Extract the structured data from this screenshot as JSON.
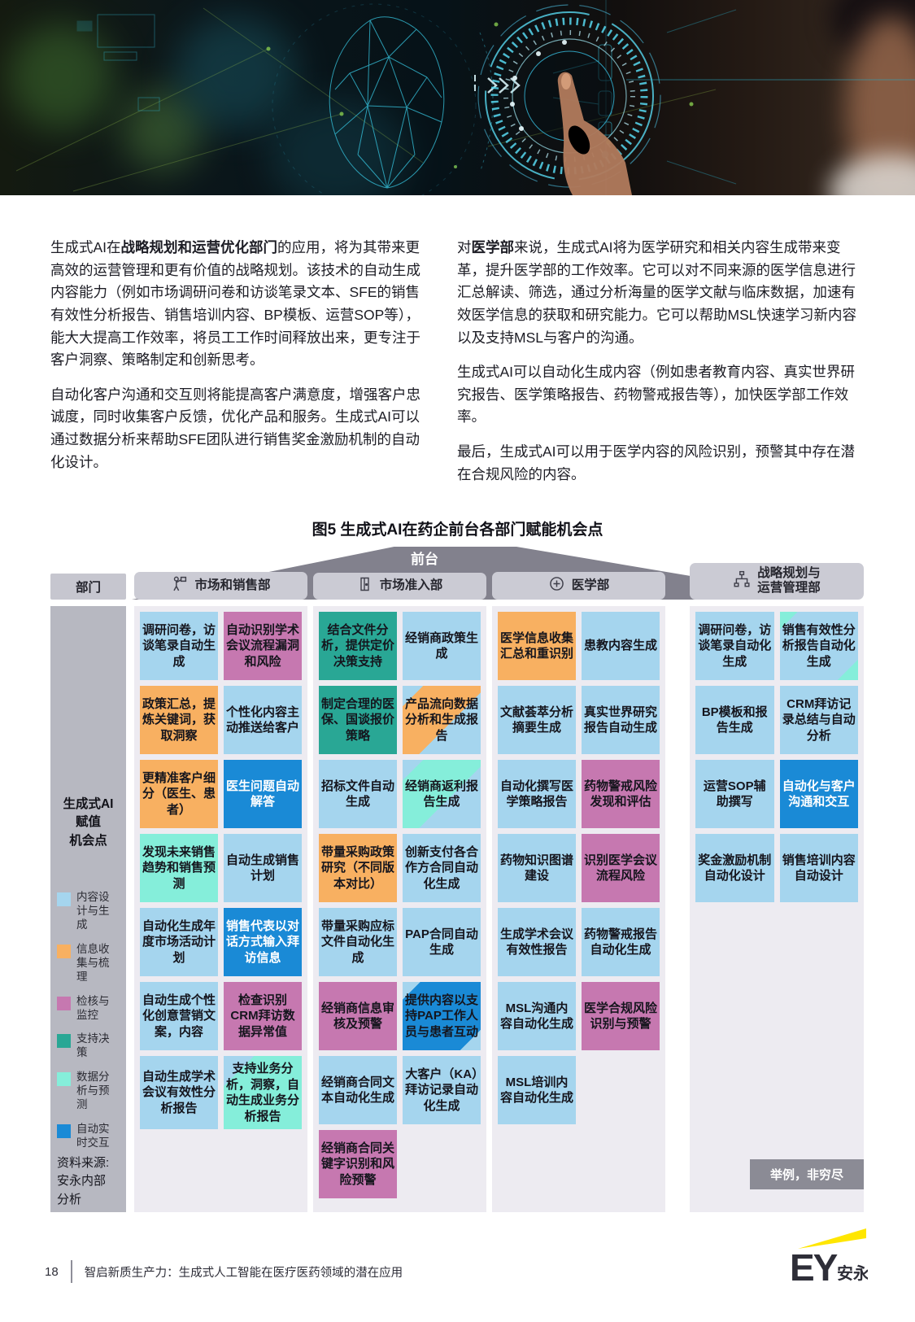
{
  "hero": {
    "icons": [
      "wireframe-face-icon",
      "data-stream-icon",
      "chevron-arrows-icon",
      "holographic-dial-icon",
      "pointing-hand-icon",
      "person-silhouette"
    ]
  },
  "intro": {
    "left": {
      "p1_prefix": "生成式AI在",
      "p1_bold": "战略规划和运营优化部门",
      "p1_rest": "的应用，将为其带来更高效的运营管理和更有价值的战略规划。该技术的自动生成内容能力（例如市场调研问卷和访谈笔录文本、SFE的销售有效性分析报告、销售培训内容、BP模板、运营SOP等），能大大提高工作效率，将员工工作时间释放出来，更专注于客户洞察、策略制定和创新思考。",
      "p2": "自动化客户沟通和交互则将能提高客户满意度，增强客户忠诚度，同时收集客户反馈，优化产品和服务。生成式AI可以通过数据分析来帮助SFE团队进行销售奖金激励机制的自动化设计。"
    },
    "right": {
      "p1_prefix": "对",
      "p1_bold": "医学部",
      "p1_rest": "来说，生成式AI将为医学研究和相关内容生成带来变革，提升医学部的工作效率。它可以对不同来源的医学信息进行汇总解读、筛选，通过分析海量的医学文献与临床数据，加速有效医学信息的获取和研究能力。它可以帮助MSL快速学习新内容以及支持MSL与客户的沟通。",
      "p2": "生成式AI可以自动化生成内容（例如患者教育内容、真实世界研究报告、医学策略报告、药物警戒报告等），加快医学部工作效率。",
      "p3": "最后，生成式AI可以用于医学内容的风险识别，预警其中存在潜在合规风险的内容。"
    }
  },
  "figure": {
    "title": "图5  生成式AI在药企前台各部门赋能机会点",
    "front_office_label": "前台",
    "dept_column_header": "部门",
    "note_badge": "举例，非穷尽",
    "sidebar": {
      "title_lines": [
        "生成式AI",
        "赋值",
        "机会点"
      ],
      "source_lines": [
        "资料来源:",
        "安永内部",
        "分析"
      ]
    },
    "palette": {
      "content": "#a5d5ee",
      "collect": "#f8b061",
      "monitor": "#c678b0",
      "decision": "#29a795",
      "analysis": "#85eeda",
      "realtime": "#1a8ad6"
    },
    "legend": [
      {
        "label": "内容设计与生成",
        "key": "content",
        "color": "#a5d5ee"
      },
      {
        "label": "信息收集与梳理",
        "key": "collect",
        "color": "#f8b061"
      },
      {
        "label": "检核与监控",
        "key": "monitor",
        "color": "#c678b0"
      },
      {
        "label": "支持决策",
        "key": "decision",
        "color": "#29a795"
      },
      {
        "label": "数据分析与预测",
        "key": "analysis",
        "color": "#85eeda"
      },
      {
        "label": "自动实时交互",
        "key": "realtime",
        "color": "#1a8ad6"
      }
    ],
    "departments": [
      {
        "name": "市场和销售部",
        "icon": "presenter-icon",
        "rows": [
          [
            {
              "t": "调研问卷，访谈笔录自动生成",
              "c": "content"
            },
            {
              "t": "自动识别学术会议流程漏洞和风险",
              "c": "monitor"
            }
          ],
          [
            {
              "t": "政策汇总，提炼关键词，获取洞察",
              "c": "collect"
            },
            {
              "t": "个性化内容主动推送给客户",
              "c": "content"
            }
          ],
          [
            {
              "t": "更精准客户细分（医生、患者）",
              "c": "collect"
            },
            {
              "t": "医生问题自动解答",
              "c": "realtime"
            }
          ],
          [
            {
              "t": "发现未来销售趋势和销售预测",
              "c": "analysis"
            },
            {
              "t": "自动生成销售计划",
              "c": "content"
            }
          ],
          [
            {
              "t": "自动化生成年度市场活动计划",
              "c": "content"
            },
            {
              "t": "销售代表以对话方式输入拜访信息",
              "c": "realtime"
            }
          ],
          [
            {
              "t": "自动生成个性化创意营销文案，内容",
              "c": "content"
            },
            {
              "t": "检查识别CRM拜访数据异常值",
              "c": "monitor"
            }
          ],
          [
            {
              "t": "自动生成学术会议有效性分析报告",
              "c": "content"
            },
            {
              "t": "支持业务分析，洞察，自动生成业务分析报告",
              "c": "analysis",
              "split": "tl:content"
            }
          ]
        ]
      },
      {
        "name": "市场准入部",
        "icon": "door-icon",
        "rows": [
          [
            {
              "t": "结合文件分析，提供定价决策支持",
              "c": "decision"
            },
            {
              "t": "经销商政策生成",
              "c": "content"
            }
          ],
          [
            {
              "t": "制定合理的医保、国谈报价策略",
              "c": "decision"
            },
            {
              "t": "产品流向数据分析和生成报告",
              "c": "content",
              "split": "band:collect"
            }
          ],
          [
            {
              "t": "招标文件自动生成",
              "c": "content"
            },
            {
              "t": "经销商返利报告生成",
              "c": "content",
              "split": "band:analysis"
            }
          ],
          [
            {
              "t": "带量采购政策研究（不同版本对比）",
              "c": "collect"
            },
            {
              "t": "创新支付各合作方合同自动化生成",
              "c": "content"
            }
          ],
          [
            {
              "t": "带量采购应标文件自动化生成",
              "c": "content"
            },
            {
              "t": "PAP合同自动生成",
              "c": "content"
            }
          ],
          [
            {
              "t": "经销商信息审核及预警",
              "c": "monitor"
            },
            {
              "t": "提供内容以支持PAP工作人员与患者互动",
              "c": "realtime",
              "split": "corners:content",
              "dark": true
            }
          ],
          [
            {
              "t": "经销商合同文本自动化生成",
              "c": "content"
            },
            {
              "t": "大客户（KA）拜访记录自动化生成",
              "c": "content"
            }
          ],
          [
            {
              "t": "经销商合同关键字识别和风险预警",
              "c": "monitor"
            },
            null
          ]
        ]
      },
      {
        "name": "医学部",
        "icon": "medical-cross-icon",
        "rows": [
          [
            {
              "t": "医学信息收集汇总和重识别",
              "c": "collect"
            },
            {
              "t": "患教内容生成",
              "c": "content"
            }
          ],
          [
            {
              "t": "文献荟萃分析摘要生成",
              "c": "content"
            },
            {
              "t": "真实世界研究报告自动生成",
              "c": "content"
            }
          ],
          [
            {
              "t": "自动化撰写医学策略报告",
              "c": "content"
            },
            {
              "t": "药物警戒风险发现和评估",
              "c": "monitor"
            }
          ],
          [
            {
              "t": "药物知识图谱建设",
              "c": "content"
            },
            {
              "t": "识别医学会议流程风险",
              "c": "monitor"
            }
          ],
          [
            {
              "t": "生成学术会议有效性报告",
              "c": "content"
            },
            {
              "t": "药物警戒报告自动化生成",
              "c": "content"
            }
          ],
          [
            {
              "t": "MSL沟通内容自动化生成",
              "c": "content"
            },
            {
              "t": "医学合规风险识别与预警",
              "c": "monitor"
            }
          ],
          [
            {
              "t": "MSL培训内容自动化生成",
              "c": "content"
            },
            null
          ]
        ]
      },
      {
        "name": "战略规划与运营管理部",
        "name_lines": [
          "战略规划与",
          "运营管理部"
        ],
        "icon": "org-chart-icon",
        "rows": [
          [
            {
              "t": "调研问卷，访谈笔录自动化生成",
              "c": "content"
            },
            {
              "t": "销售有效性分析报告自动化生成",
              "c": "content",
              "split": "corners:analysis"
            }
          ],
          [
            {
              "t": "BP模板和报告生成",
              "c": "content"
            },
            {
              "t": "CRM拜访记录总结与自动分析",
              "c": "content"
            }
          ],
          [
            {
              "t": "运营SOP辅助撰写",
              "c": "content"
            },
            {
              "t": "自动化与客户沟通和交互",
              "c": "realtime"
            }
          ],
          [
            {
              "t": "奖金激励机制自动化设计",
              "c": "content"
            },
            {
              "t": "销售培训内容自动设计",
              "c": "content"
            }
          ]
        ]
      }
    ]
  },
  "footer": {
    "page_number": "18",
    "title": "智启新质生产力：生成式人工智能在医疗医药领域的潜在应用",
    "logo_text": "EY",
    "logo_cn": "安永"
  }
}
